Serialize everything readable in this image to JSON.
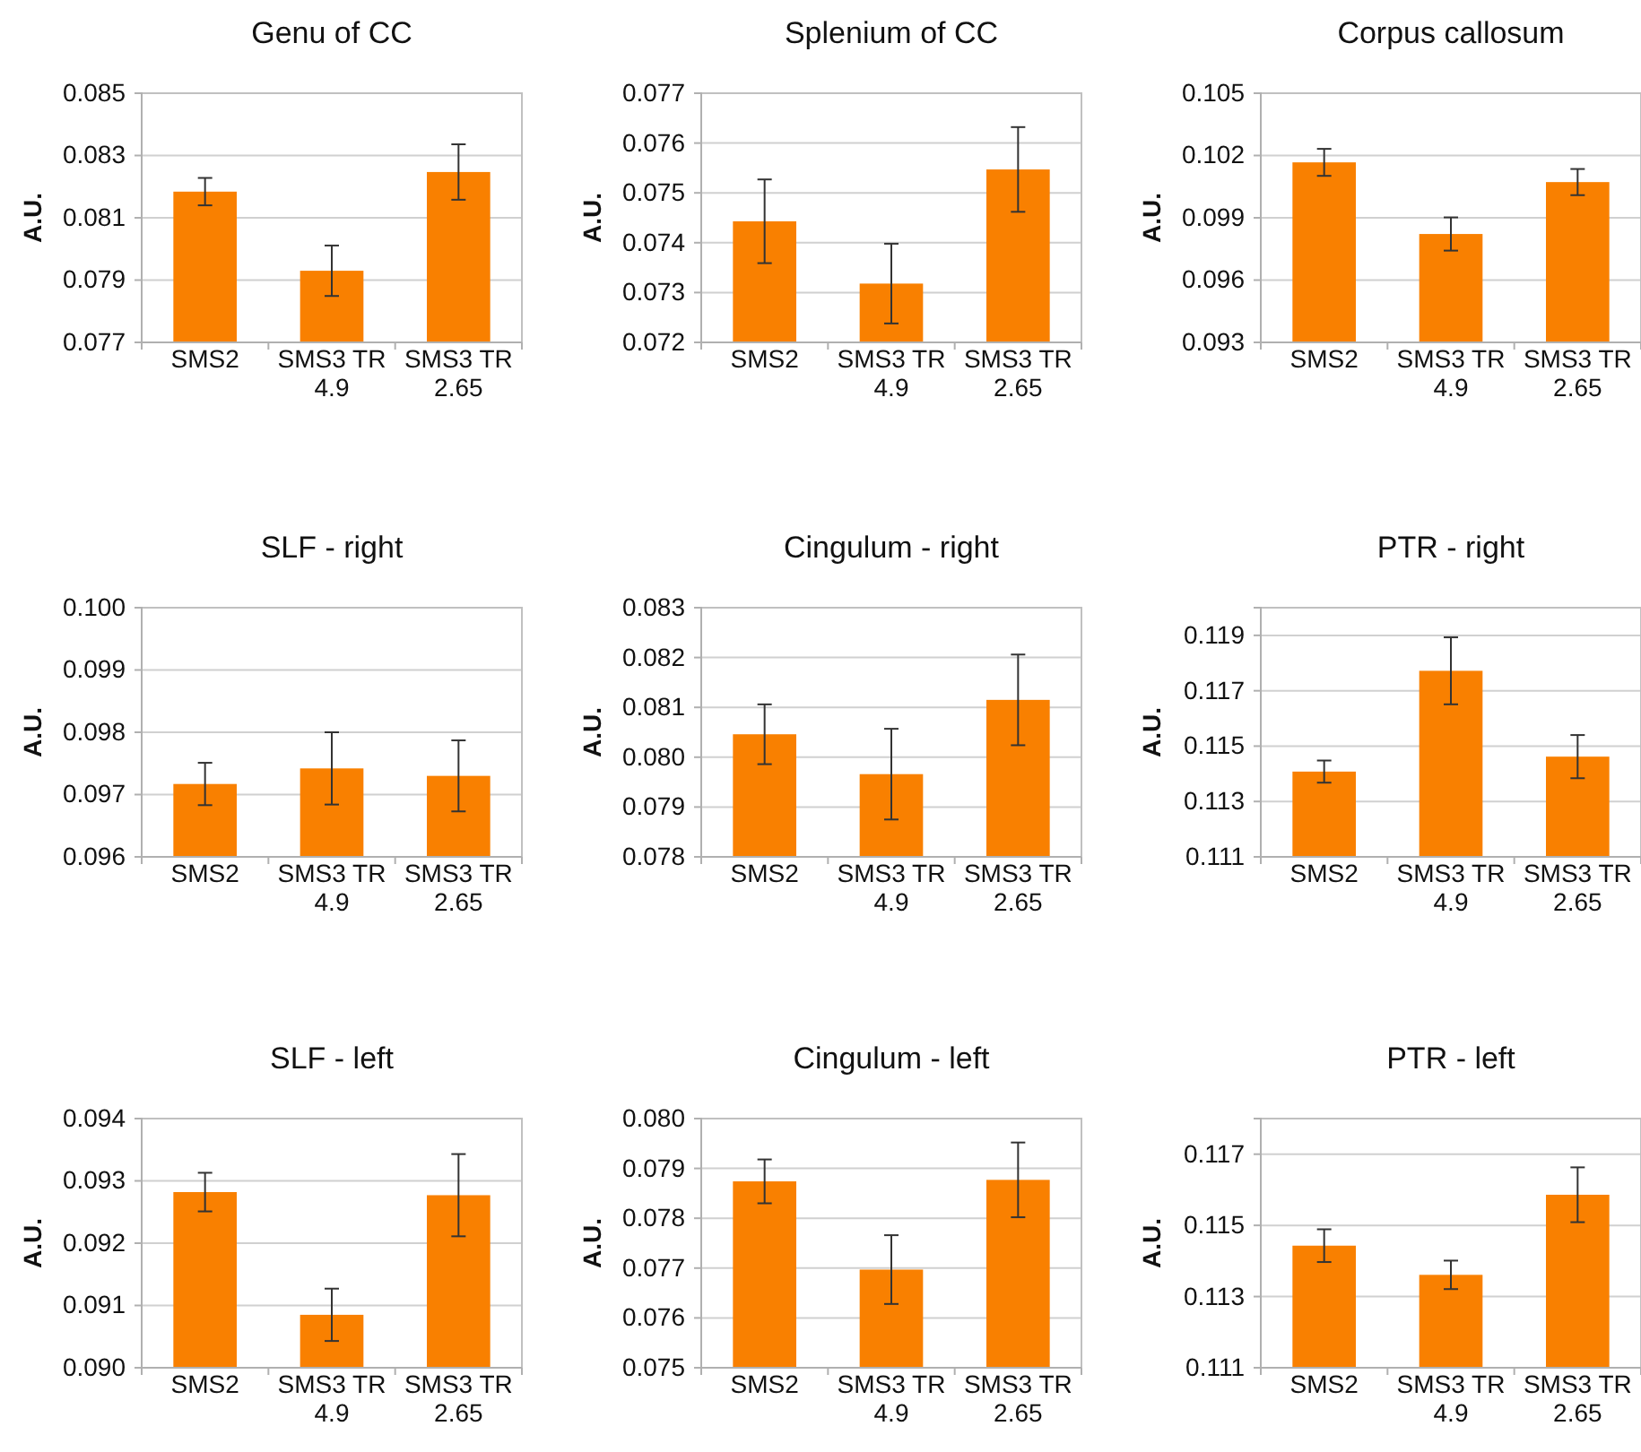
{
  "chart_data": [
    {
      "type": "bar",
      "title": "Genu of CC",
      "ylabel": "A.U.",
      "categories": [
        "SMS2",
        "SMS3 TR 4.9",
        "SMS3 TR 2.65"
      ],
      "values": [
        0.08184,
        0.0793,
        0.08247
      ],
      "errors": [
        0.00044,
        0.00081,
        0.00089
      ],
      "color": "#f98000",
      "ylim": [
        0.077,
        0.085
      ],
      "yticks": [
        0.077,
        0.079,
        0.081,
        0.083,
        0.085
      ],
      "grid": "y"
    },
    {
      "type": "bar",
      "title": "Splenium of CC",
      "ylabel": "A.U.",
      "categories": [
        "SMS2",
        "SMS3 TR 4.9",
        "SMS3 TR 2.65"
      ],
      "values": [
        0.07443,
        0.07318,
        0.07547
      ],
      "errors": [
        0.00084,
        0.0008,
        0.00085
      ],
      "color": "#f98000",
      "ylim": [
        0.072,
        0.077
      ],
      "yticks": [
        0.072,
        0.073,
        0.074,
        0.075,
        0.076,
        0.077
      ],
      "grid": "y"
    },
    {
      "type": "bar",
      "title": "Corpus callosum",
      "ylabel": "A.U.",
      "categories": [
        "SMS2",
        "SMS3 TR 4.9",
        "SMS3 TR 2.65"
      ],
      "values": [
        0.10167,
        0.09822,
        0.10072
      ],
      "errors": [
        0.00065,
        0.0008,
        0.00063
      ],
      "color": "#f98000",
      "ylim": [
        0.093,
        0.105
      ],
      "yticks": [
        0.093,
        0.096,
        0.099,
        0.102,
        0.105
      ],
      "grid": "y"
    },
    {
      "type": "bar",
      "title": "SLF - right",
      "ylabel": "A.U.",
      "categories": [
        "SMS2",
        "SMS3 TR 4.9",
        "SMS3 TR 2.65"
      ],
      "values": [
        0.09717,
        0.09742,
        0.0973
      ],
      "errors": [
        0.00034,
        0.00058,
        0.00057
      ],
      "color": "#f98000",
      "ylim": [
        0.096,
        0.1
      ],
      "yticks": [
        0.096,
        0.097,
        0.098,
        0.099,
        {
          "value": 0.1,
          "label": "0.100"
        }
      ],
      "grid": "y"
    },
    {
      "type": "bar",
      "title": "Cingulum - right",
      "ylabel": "A.U.",
      "categories": [
        "SMS2",
        "SMS3 TR 4.9",
        "SMS3 TR 2.65"
      ],
      "values": [
        0.08046,
        0.07966,
        0.08115
      ],
      "errors": [
        0.0006,
        0.00091,
        0.00091
      ],
      "color": "#f98000",
      "ylim": [
        0.078,
        0.083
      ],
      "yticks": [
        0.078,
        0.079,
        {
          "value": 0.08,
          "label": "0.080"
        },
        0.081,
        0.082,
        0.083
      ],
      "grid": "y"
    },
    {
      "type": "bar",
      "title": "PTR - right",
      "ylabel": "A.U.",
      "categories": [
        "SMS2",
        "SMS3 TR 4.9",
        "SMS3 TR 2.65"
      ],
      "values": [
        0.11408,
        0.11772,
        0.11462
      ],
      "errors": [
        0.0004,
        0.00121,
        0.00078
      ],
      "color": "#f98000",
      "ylim": [
        0.111,
        0.12
      ],
      "yticks": [
        0.111,
        0.113,
        0.115,
        0.117,
        0.119
      ],
      "grid": "y"
    },
    {
      "type": "bar",
      "title": "SLF - left",
      "ylabel": "A.U.",
      "categories": [
        "SMS2",
        "SMS3 TR 4.9",
        "SMS3 TR 2.65"
      ],
      "values": [
        0.09282,
        0.09085,
        0.09277
      ],
      "errors": [
        0.00031,
        0.00042,
        0.00066
      ],
      "color": "#f98000",
      "ylim": [
        0.09,
        0.094
      ],
      "yticks": [
        {
          "value": 0.09,
          "label": "0.090"
        },
        0.091,
        0.092,
        0.093,
        0.094
      ],
      "grid": "y"
    },
    {
      "type": "bar",
      "title": "Cingulum - left",
      "ylabel": "A.U.",
      "categories": [
        "SMS2",
        "SMS3 TR 4.9",
        "SMS3 TR 2.65"
      ],
      "values": [
        0.07874,
        0.07697,
        0.07877
      ],
      "errors": [
        0.00044,
        0.00069,
        0.00075
      ],
      "color": "#f98000",
      "ylim": [
        0.075,
        0.08
      ],
      "yticks": [
        0.075,
        0.076,
        0.077,
        0.078,
        0.079,
        {
          "value": 0.08,
          "label": "0.080"
        }
      ],
      "grid": "y"
    },
    {
      "type": "bar",
      "title": "PTR - left",
      "ylabel": "A.U.",
      "categories": [
        "SMS2",
        "SMS3 TR 4.9",
        "SMS3 TR 2.65"
      ],
      "values": [
        0.11443,
        0.11361,
        0.11586
      ],
      "errors": [
        0.00046,
        0.0004,
        0.00077
      ],
      "color": "#f98000",
      "ylim": [
        0.111,
        0.118
      ],
      "yticks": [
        0.111,
        0.113,
        0.115,
        0.117
      ],
      "grid": "y"
    }
  ]
}
